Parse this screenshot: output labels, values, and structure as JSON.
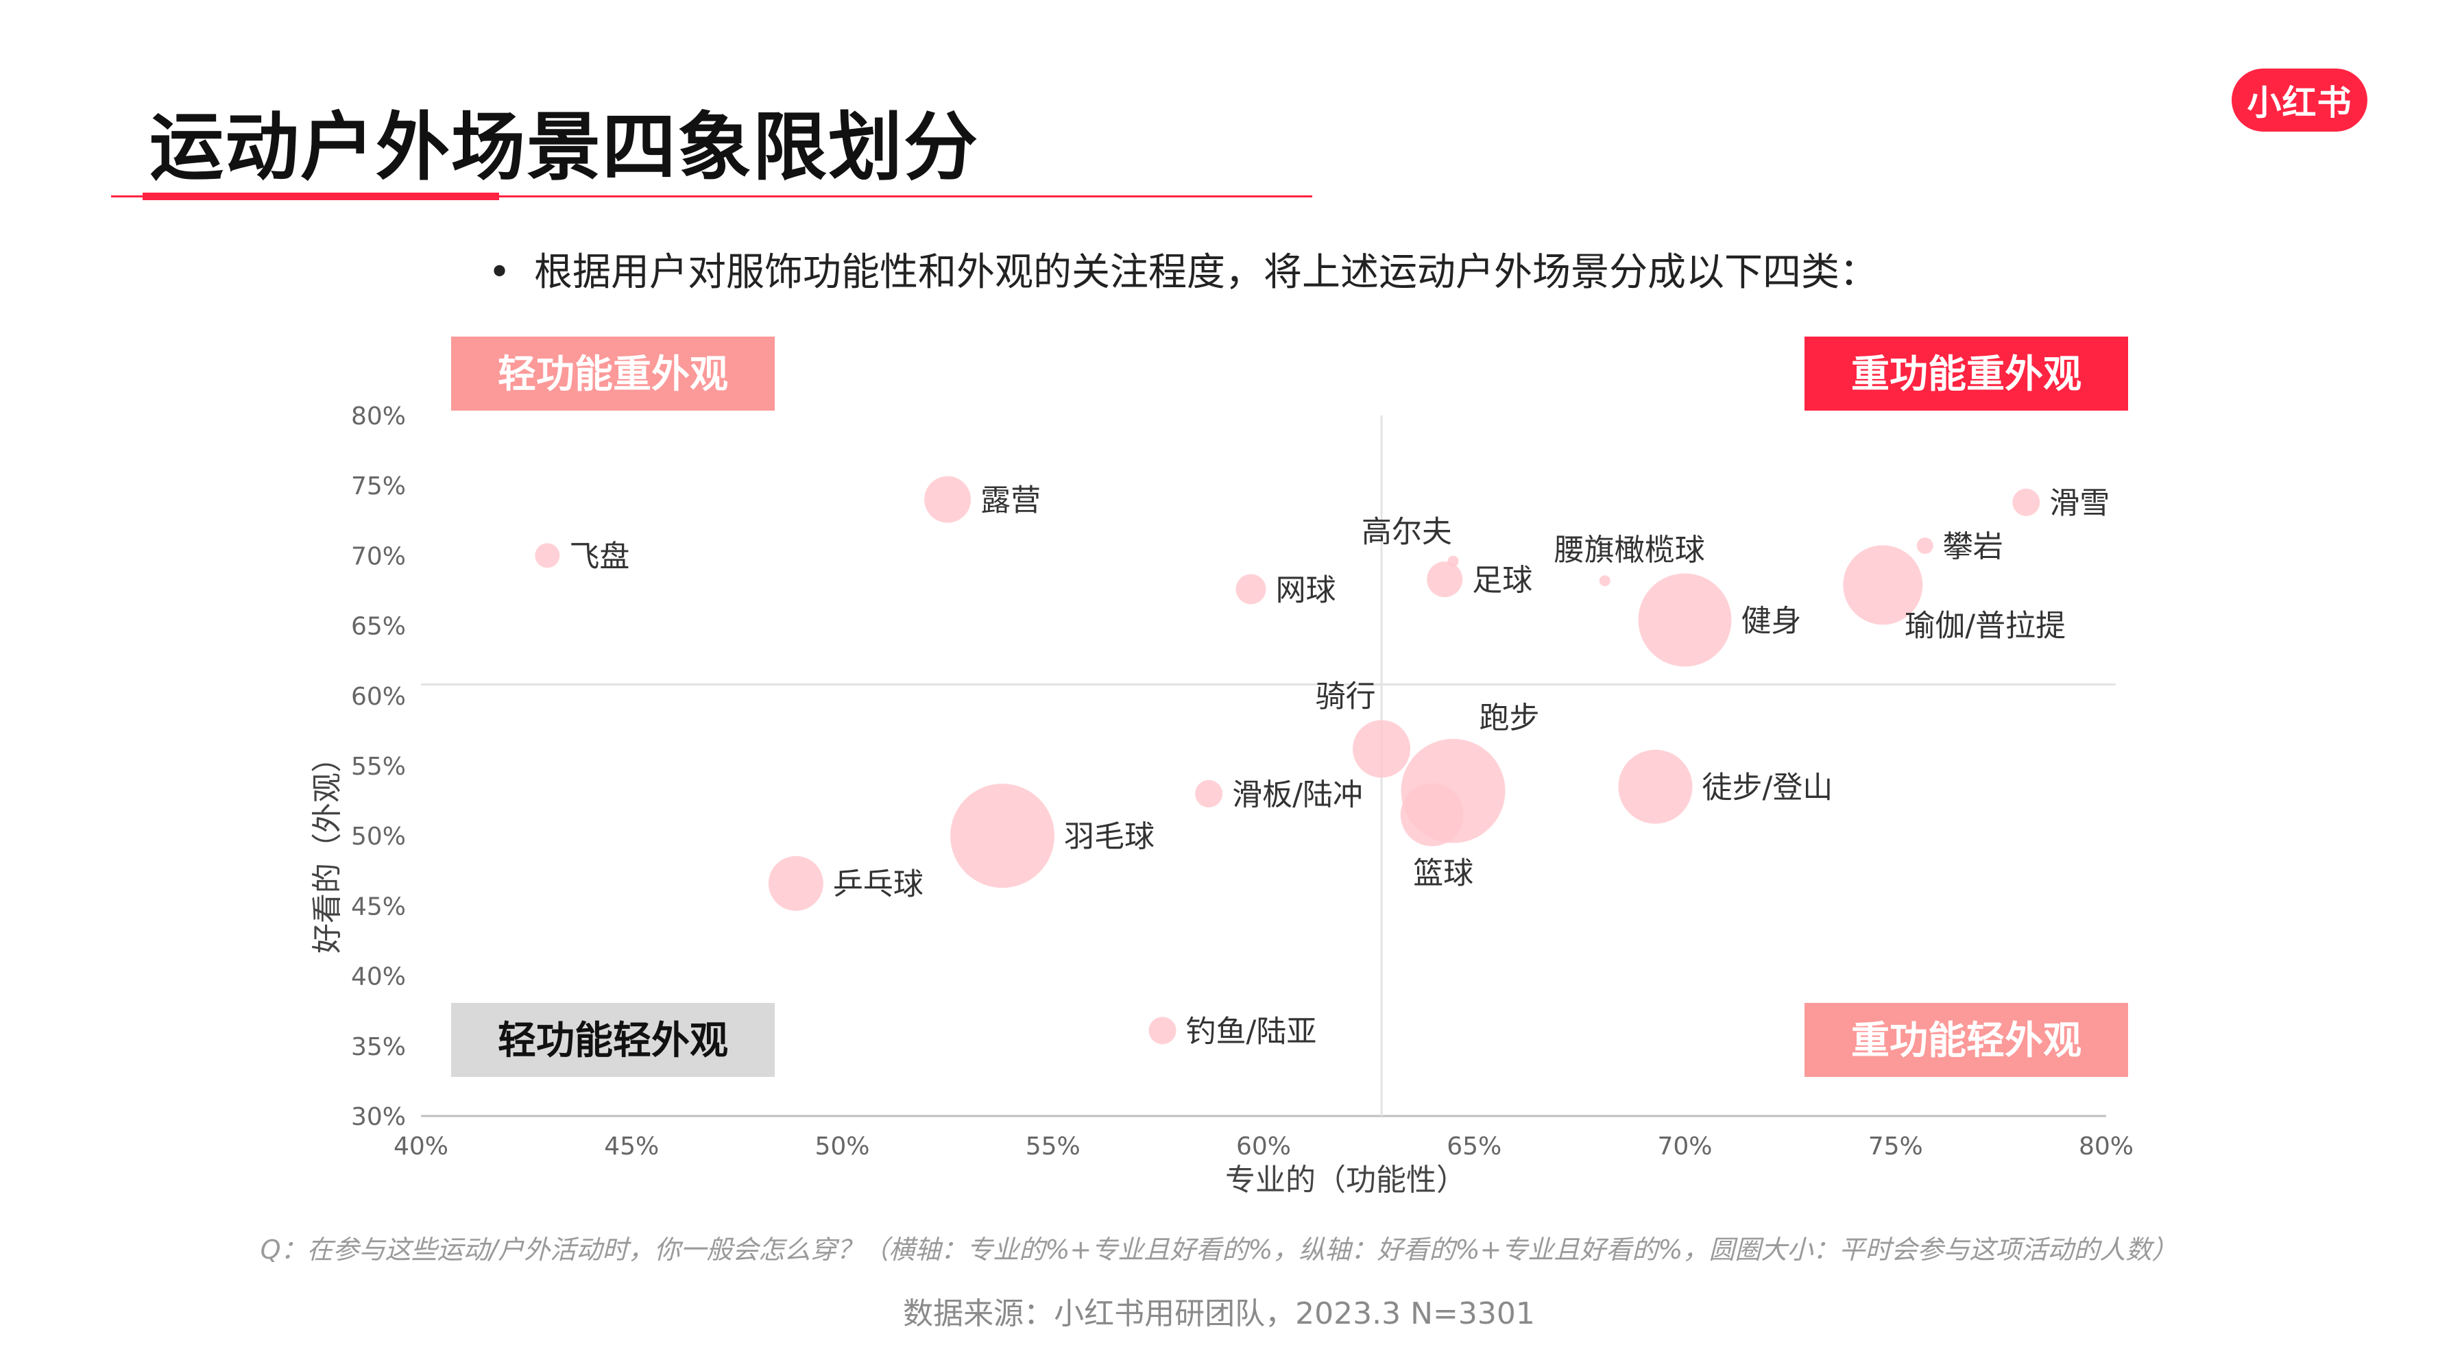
{
  "page": {
    "title": "运动户外场景四象限划分",
    "logo_text": "小红书",
    "bullet": "•",
    "subtitle": "根据用户对服饰功能性和外观的关注程度，将上述运动户外场景分成以下四类：",
    "question_note": "Q：在参与这些运动/户外活动时，你一般会怎么穿？（横轴：专业的%+专业且好看的%，纵轴：好看的%+专业且好看的%，圆圈大小：平时会参与这项活动的人数）",
    "source": "数据来源：小红书用研团队，2023.3 N=3301",
    "colors": {
      "brand": "#ff2442",
      "bubble": "#ffc7cd",
      "quadrant_light": "#fc9999",
      "quadrant_gray": "#d9d9d9"
    }
  },
  "chart_data": {
    "type": "scatter",
    "xlabel": "专业的（功能性）",
    "ylabel": "好看的（外观）",
    "xlim": [
      40,
      80
    ],
    "ylim": [
      30,
      80
    ],
    "x_ticks": [
      "40%",
      "45%",
      "50%",
      "55%",
      "60%",
      "65%",
      "70%",
      "75%",
      "80%"
    ],
    "y_ticks": [
      "80%",
      "75%",
      "70%",
      "65%",
      "60%",
      "55%",
      "50%",
      "45%",
      "40%",
      "35%",
      "30%"
    ],
    "quadrant_divider": {
      "x": 62.8,
      "y": 60.8
    },
    "quadrants": [
      {
        "label": "轻功能重外观",
        "position": "top-left",
        "style": "light"
      },
      {
        "label": "重功能重外观",
        "position": "top-right",
        "style": "strong"
      },
      {
        "label": "轻功能轻外观",
        "position": "bottom-left",
        "style": "gray"
      },
      {
        "label": "重功能轻外观",
        "position": "bottom-right",
        "style": "light"
      }
    ],
    "points": [
      {
        "label": "飞盘",
        "x": 43.0,
        "y": 70.0,
        "size": 9,
        "label_pos": "right"
      },
      {
        "label": "露营",
        "x": 52.5,
        "y": 74.0,
        "size": 17,
        "label_pos": "right"
      },
      {
        "label": "网球",
        "x": 59.7,
        "y": 67.6,
        "size": 11,
        "label_pos": "right"
      },
      {
        "label": "高尔夫",
        "x": 64.5,
        "y": 69.6,
        "size": 4,
        "label_pos": "top-left"
      },
      {
        "label": "足球",
        "x": 64.3,
        "y": 68.3,
        "size": 13,
        "label_pos": "right"
      },
      {
        "label": "腰旗橄榄球",
        "x": 68.1,
        "y": 68.2,
        "size": 4,
        "label_pos": "top"
      },
      {
        "label": "健身",
        "x": 70.0,
        "y": 65.4,
        "size": 34,
        "label_pos": "right"
      },
      {
        "label": "瑜伽/普拉提",
        "x": 74.7,
        "y": 67.9,
        "size": 29,
        "label_pos": "bottom-right"
      },
      {
        "label": "攀岩",
        "x": 75.7,
        "y": 70.7,
        "size": 6,
        "label_pos": "right"
      },
      {
        "label": "滑雪",
        "x": 78.1,
        "y": 73.8,
        "size": 10,
        "label_pos": "right"
      },
      {
        "label": "骑行",
        "x": 62.8,
        "y": 56.2,
        "size": 21,
        "label_pos": "top-left"
      },
      {
        "label": "跑步",
        "x": 64.5,
        "y": 53.2,
        "size": 38,
        "label_pos": "top-right"
      },
      {
        "label": "篮球",
        "x": 64.0,
        "y": 51.5,
        "size": 23,
        "label_pos": "bottom-left"
      },
      {
        "label": "滑板/陆冲",
        "x": 58.7,
        "y": 53.0,
        "size": 10,
        "label_pos": "right"
      },
      {
        "label": "羽毛球",
        "x": 53.8,
        "y": 50.0,
        "size": 38,
        "label_pos": "right"
      },
      {
        "label": "乒乓球",
        "x": 48.9,
        "y": 46.6,
        "size": 20,
        "label_pos": "right"
      },
      {
        "label": "徒步/登山",
        "x": 69.3,
        "y": 53.5,
        "size": 27,
        "label_pos": "right"
      },
      {
        "label": "钓鱼/陆亚",
        "x": 57.6,
        "y": 36.1,
        "size": 10,
        "label_pos": "right"
      }
    ]
  }
}
